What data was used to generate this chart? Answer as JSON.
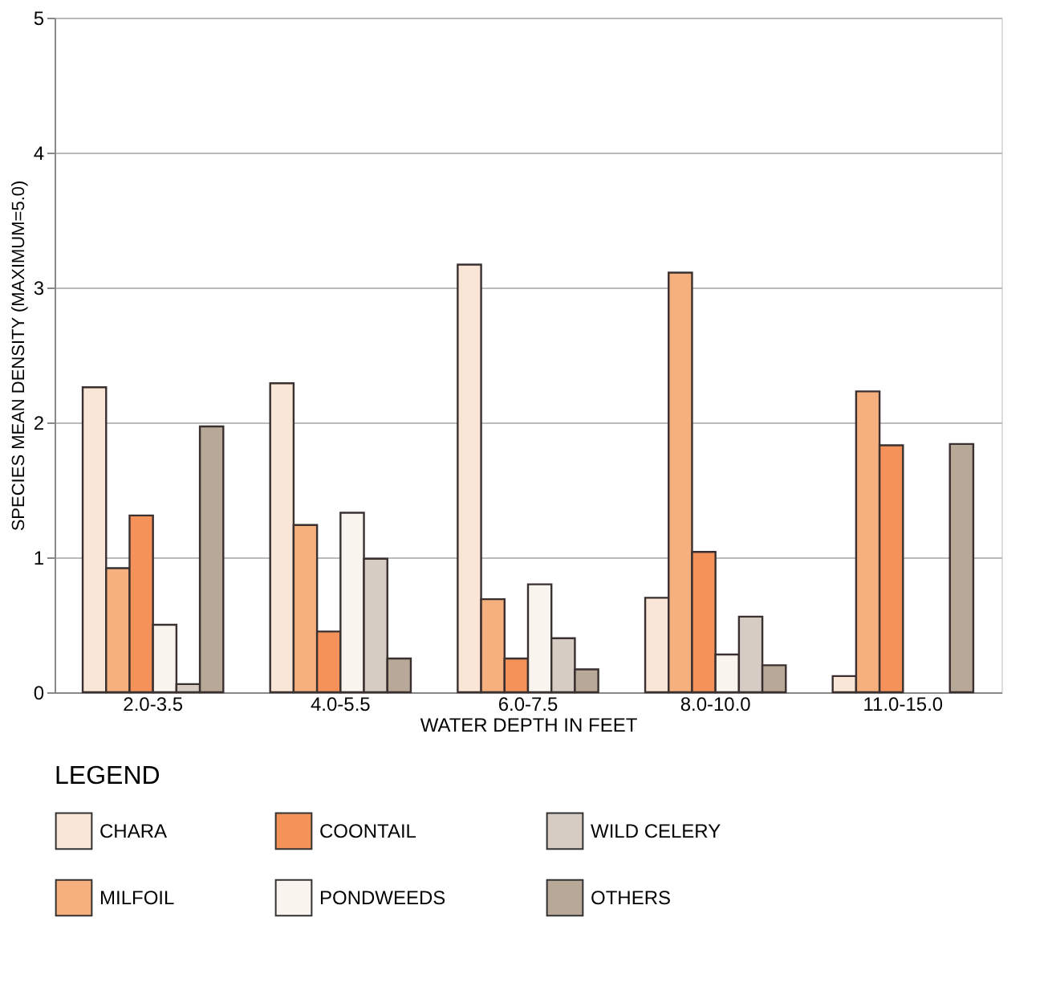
{
  "chart_data": {
    "type": "bar",
    "xlabel": "WATER DEPTH IN FEET",
    "ylabel": "SPECIES MEAN DENSITY (MAXIMUM=5.0)",
    "legend_title": "LEGEND",
    "categories": [
      "2.0-3.5",
      "4.0-5.5",
      "6.0-7.5",
      "8.0-10.0",
      "11.0-15.0"
    ],
    "series": [
      {
        "name": "CHARA",
        "color": "#fae6d6",
        "values": [
          2.26,
          2.29,
          3.17,
          0.7,
          0.12
        ]
      },
      {
        "name": "MILFOIL",
        "color": "#f6b07e",
        "values": [
          0.92,
          1.24,
          0.69,
          3.11,
          2.23
        ]
      },
      {
        "name": "COONTAIL",
        "color": "#f4925a",
        "values": [
          1.31,
          0.45,
          0.25,
          1.04,
          1.83
        ]
      },
      {
        "name": "PONDWEEDS",
        "color": "#faf4ee",
        "values": [
          0.5,
          1.33,
          0.8,
          0.28,
          null
        ]
      },
      {
        "name": "WILD CELERY",
        "color": "#d6ccc4",
        "values": [
          0.06,
          0.99,
          0.4,
          0.56,
          null
        ]
      },
      {
        "name": "OTHERS",
        "color": "#b8a898",
        "values": [
          1.97,
          0.25,
          0.17,
          0.2,
          1.84
        ]
      }
    ],
    "ylim": [
      0,
      5
    ],
    "yticks": [
      0,
      1,
      2,
      3,
      4,
      5
    ],
    "grid": "y",
    "legend": "bottom"
  }
}
